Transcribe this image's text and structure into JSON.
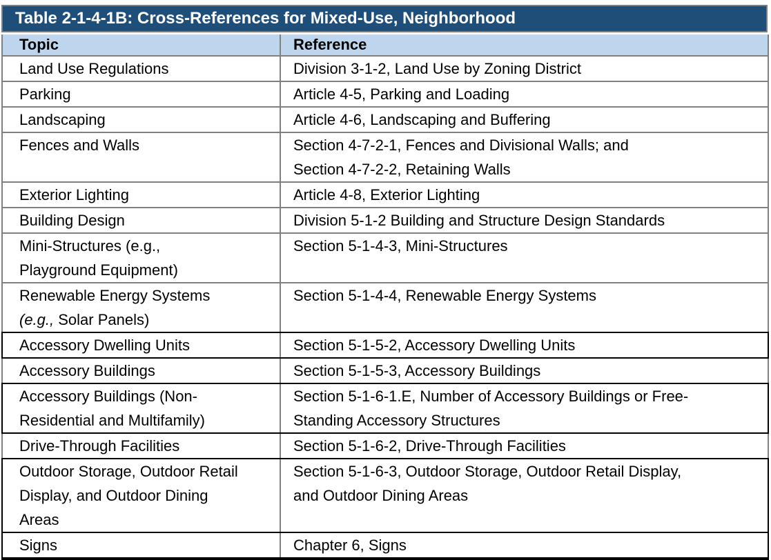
{
  "table": {
    "title": "Table 2-1-4-1B: Cross-References for Mixed-Use, Neighborhood",
    "columns": [
      "Topic",
      "Reference"
    ],
    "colors": {
      "title_bar_bg": "#1F4E79",
      "title_text": "#FFFFFF",
      "header_row_bg": "#BDD6EE",
      "grid_border_gray": "#808080",
      "emphasis_border_black": "#000000"
    },
    "rows": [
      {
        "topic_lines": [
          [
            "Land Use Regulations"
          ]
        ],
        "ref_lines": [
          [
            "Division 3-1-2, Land Use by Zoning District"
          ]
        ],
        "sides": "gray",
        "below": "gray"
      },
      {
        "topic_lines": [
          [
            "Parking"
          ]
        ],
        "ref_lines": [
          [
            "Article 4-5, Parking and Loading"
          ]
        ],
        "sides": "gray",
        "below": "gray"
      },
      {
        "topic_lines": [
          [
            "Landscaping"
          ]
        ],
        "ref_lines": [
          [
            "Article 4-6, Landscaping and Buffering"
          ]
        ],
        "sides": "gray",
        "below": "gray"
      },
      {
        "topic_lines": [
          [
            "Fences and Walls"
          ]
        ],
        "ref_lines": [
          [
            "Section 4-7-2-1, Fences and Divisional Walls; and"
          ],
          [
            "Section 4-7-2-2, Retaining Walls"
          ]
        ],
        "sides": "gray",
        "below": "gray"
      },
      {
        "topic_lines": [
          [
            "Exterior Lighting"
          ]
        ],
        "ref_lines": [
          [
            "Article 4-8, Exterior Lighting"
          ]
        ],
        "sides": "gray",
        "below": "gray"
      },
      {
        "topic_lines": [
          [
            "Building Design"
          ]
        ],
        "ref_lines": [
          [
            "Division 5-1-2 Building and Structure Design Standards"
          ]
        ],
        "sides": "gray",
        "below": "gray"
      },
      {
        "topic_lines": [
          [
            "Mini-Structures (e.g.,"
          ],
          [
            "Playground Equipment)"
          ]
        ],
        "ref_lines": [
          [
            "Section 5-1-4-3, Mini-Structures"
          ]
        ],
        "sides": "gray",
        "below": "gray"
      },
      {
        "topic_lines": [
          [
            "Renewable Energy Systems"
          ],
          [
            {
              "text": "(e.g.,",
              "italic": true
            },
            " Solar Panels)"
          ]
        ],
        "ref_lines": [
          [
            "Section 5-1-4-4, Renewable Energy Systems"
          ]
        ],
        "sides": "gray",
        "below": "black"
      },
      {
        "topic_lines": [
          [
            "Accessory Dwelling Units"
          ]
        ],
        "ref_lines": [
          [
            "Section 5-1-5-2, Accessory Dwelling Units"
          ]
        ],
        "sides": "black",
        "below": "black"
      },
      {
        "topic_lines": [
          [
            "Accessory Buildings"
          ]
        ],
        "ref_lines": [
          [
            "Section 5-1-5-3, Accessory Buildings"
          ]
        ],
        "sides": "gray",
        "below": "black"
      },
      {
        "topic_lines": [
          [
            "Accessory Buildings (Non-"
          ],
          [
            "Residential and Multifamily)"
          ]
        ],
        "ref_lines": [
          [
            "Section 5-1-6-1.E, Number of Accessory Buildings or Free-"
          ],
          [
            "Standing Accessory Structures"
          ]
        ],
        "sides": "black",
        "below": "black"
      },
      {
        "topic_lines": [
          [
            "Drive-Through Facilities"
          ]
        ],
        "ref_lines": [
          [
            "Section 5-1-6-2, Drive-Through Facilities"
          ]
        ],
        "sides": "gray",
        "below": "black"
      },
      {
        "topic_lines": [
          [
            "Outdoor Storage, Outdoor Retail"
          ],
          [
            "Display, and Outdoor Dining"
          ],
          [
            "Areas"
          ]
        ],
        "ref_lines": [
          [
            "Section 5-1-6-3, Outdoor Storage, Outdoor Retail Display,"
          ],
          [
            "and Outdoor Dining Areas"
          ]
        ],
        "sides": "black",
        "below": "black"
      },
      {
        "topic_lines": [
          [
            "Signs"
          ]
        ],
        "ref_lines": [
          [
            "Chapter 6, Signs"
          ]
        ],
        "sides": "black",
        "below": "black-thick"
      }
    ]
  }
}
